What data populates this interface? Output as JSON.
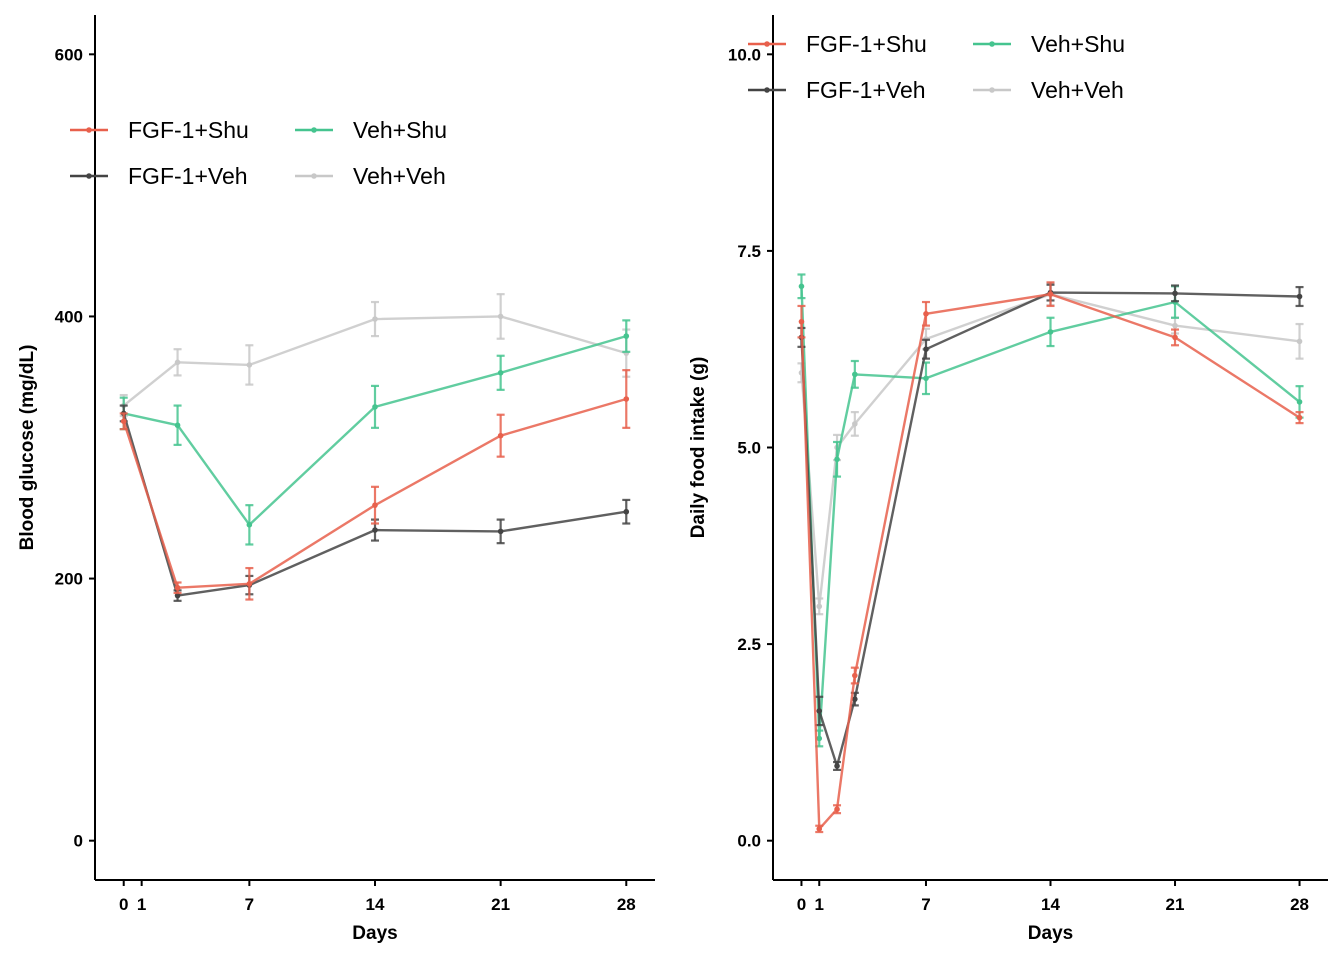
{
  "legend_order": [
    "FGF-1+Shu",
    "FGF-1+Veh",
    "Veh+Shu",
    "Veh+Veh"
  ],
  "colors": {
    "FGF-1+Shu": "#e8604c",
    "FGF-1+Veh": "#444444",
    "Veh+Shu": "#45c48f",
    "Veh+Veh": "#c8c8c8"
  },
  "chart_data": [
    {
      "type": "line",
      "xlabel": "Days",
      "ylabel": "Blood glucose (mg/dL)",
      "xticks": [
        0,
        1,
        7,
        14,
        21,
        28
      ],
      "xtick_labels": [
        "0",
        "1",
        "7",
        "14",
        "21",
        "28"
      ],
      "xlim": [
        -1.6,
        29.6
      ],
      "yticks": [
        0,
        200,
        400,
        600
      ],
      "ytick_labels": [
        "0",
        "200",
        "400",
        "600"
      ],
      "ylim": [
        -30,
        630
      ],
      "legend_position": "top-left",
      "series": [
        {
          "name": "FGF-1+Shu",
          "x": [
            0,
            3,
            7,
            14,
            21,
            28
          ],
          "y": [
            320,
            193,
            196,
            256,
            309,
            337
          ],
          "err": [
            6,
            4,
            12,
            14,
            16,
            22
          ]
        },
        {
          "name": "FGF-1+Veh",
          "x": [
            0,
            3,
            7,
            14,
            21,
            28
          ],
          "y": [
            326,
            187,
            195,
            237,
            236,
            251
          ],
          "err": [
            6,
            4,
            7,
            8,
            9,
            9
          ]
        },
        {
          "name": "Veh+Shu",
          "x": [
            0,
            3,
            7,
            14,
            21,
            28
          ],
          "y": [
            326,
            317,
            241,
            331,
            357,
            385
          ],
          "err": [
            12,
            15,
            15,
            16,
            13,
            12
          ]
        },
        {
          "name": "Veh+Veh",
          "x": [
            0,
            3,
            7,
            14,
            21,
            28
          ],
          "y": [
            332,
            365,
            363,
            398,
            400,
            372
          ],
          "err": [
            8,
            10,
            15,
            13,
            17,
            18
          ]
        }
      ]
    },
    {
      "type": "line",
      "xlabel": "Days",
      "ylabel": "Daily food intake (g)",
      "xticks": [
        0,
        1,
        7,
        14,
        21,
        28
      ],
      "xtick_labels": [
        "0",
        "1",
        "7",
        "14",
        "21",
        "28"
      ],
      "xlim": [
        -1.6,
        29.6
      ],
      "yticks": [
        0,
        2.5,
        5,
        7.5,
        10
      ],
      "ytick_labels": [
        "0.0",
        "2.5",
        "5.0",
        "7.5",
        "10.0"
      ],
      "ylim": [
        -0.5,
        10.5
      ],
      "legend_position": "top",
      "series": [
        {
          "name": "FGF-1+Shu",
          "x": [
            0,
            1,
            2,
            3,
            7,
            14,
            21,
            28
          ],
          "y": [
            6.6,
            0.15,
            0.4,
            2.1,
            6.7,
            6.95,
            6.4,
            5.38
          ],
          "err": [
            0.2,
            0.04,
            0.05,
            0.1,
            0.15,
            0.15,
            0.1,
            0.07
          ]
        },
        {
          "name": "FGF-1+Veh",
          "x": [
            0,
            1,
            2,
            3,
            7,
            14,
            21,
            28
          ],
          "y": [
            6.4,
            1.65,
            0.95,
            1.8,
            6.25,
            6.97,
            6.96,
            6.92
          ],
          "err": [
            0.12,
            0.18,
            0.05,
            0.08,
            0.12,
            0.1,
            0.1,
            0.12
          ]
        },
        {
          "name": "Veh+Shu",
          "x": [
            0,
            1,
            2,
            3,
            7,
            14,
            21,
            28
          ],
          "y": [
            7.05,
            1.3,
            4.85,
            5.93,
            5.88,
            6.47,
            6.85,
            5.58
          ],
          "err": [
            0.15,
            0.1,
            0.22,
            0.17,
            0.2,
            0.18,
            0.2,
            0.2
          ]
        },
        {
          "name": "Veh+Veh",
          "x": [
            0,
            1,
            2,
            3,
            7,
            14,
            21,
            28
          ],
          "y": [
            5.95,
            2.98,
            5.0,
            5.3,
            6.38,
            6.95,
            6.55,
            6.35
          ],
          "err": [
            0.12,
            0.1,
            0.16,
            0.15,
            0.13,
            0.14,
            0.1,
            0.22
          ]
        }
      ]
    }
  ]
}
